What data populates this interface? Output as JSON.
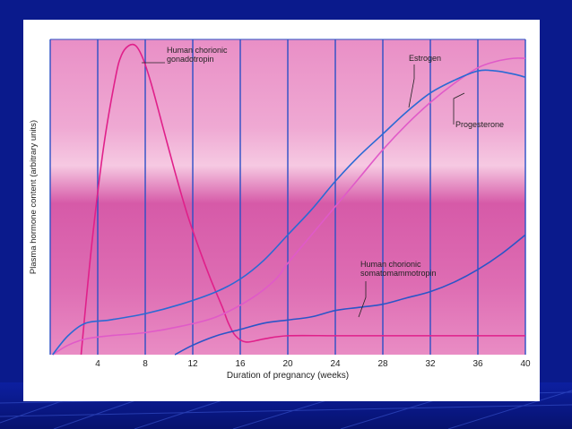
{
  "chart_data": {
    "type": "line",
    "title": "",
    "xlabel": "Duration of pregnancy (weeks)",
    "ylabel": "Plasma hormone content (arbitrary units)",
    "xlim": [
      0,
      40
    ],
    "ylim": [
      0,
      100
    ],
    "xticks": [
      4,
      8,
      12,
      16,
      20,
      24,
      28,
      32,
      36,
      40
    ],
    "grid": true,
    "series": [
      {
        "name": "Human chorionic gonadotropin",
        "label_lines": [
          "Human chorionic",
          "gonadotropin"
        ],
        "color": "#e0208a",
        "x": [
          2.6,
          3.5,
          4.5,
          5.5,
          6.0,
          6.6,
          7.2,
          7.8,
          8.5,
          9.5,
          10.5,
          11.5,
          12.5,
          13.5,
          14.5,
          15.0,
          15.6,
          16.5,
          18,
          20,
          24,
          28,
          32,
          36,
          40
        ],
        "y": [
          0,
          35,
          66,
          88,
          95,
          98,
          98,
          94,
          86,
          72,
          58,
          45,
          34,
          24,
          15,
          10,
          6,
          4,
          5,
          6,
          6,
          6,
          6,
          6,
          6
        ]
      },
      {
        "name": "Estrogen",
        "label_lines": [
          "Estrogen"
        ],
        "color": "#e05ac8",
        "x": [
          0.2,
          1.5,
          3,
          5,
          8,
          11,
          14,
          17,
          19,
          20,
          22,
          24,
          26,
          28,
          30,
          32,
          34,
          36,
          37.5,
          39,
          40
        ],
        "y": [
          0,
          3,
          5,
          6,
          7,
          9,
          12,
          18,
          24,
          29,
          38,
          47,
          56,
          65,
          73,
          80,
          86,
          91,
          93,
          94,
          94
        ]
      },
      {
        "name": "Progesterone",
        "label_lines": [
          "Progesterone"
        ],
        "color": "#2a6ad4",
        "x": [
          0.2,
          1.5,
          3,
          5,
          8,
          11,
          14,
          16,
          18,
          20,
          22,
          24,
          26,
          28,
          30,
          32,
          34,
          36,
          37.5,
          39,
          40
        ],
        "y": [
          0,
          6,
          10,
          11,
          13,
          16,
          20,
          24,
          30,
          38,
          46,
          55,
          63,
          70,
          77,
          83,
          87,
          90,
          90,
          89,
          88
        ]
      },
      {
        "name": "Human chorionic somatomammotropin",
        "label_lines": [
          "Human chorionic",
          "somatomammotropin"
        ],
        "color": "#2a55c8",
        "x": [
          10.5,
          12,
          14,
          16,
          18,
          20,
          22,
          24,
          26,
          28,
          30,
          32,
          34,
          36,
          38,
          40
        ],
        "y": [
          0,
          3,
          6,
          8,
          10,
          11,
          12,
          14,
          15,
          16,
          18,
          20,
          23,
          27,
          32,
          38
        ]
      }
    ]
  }
}
